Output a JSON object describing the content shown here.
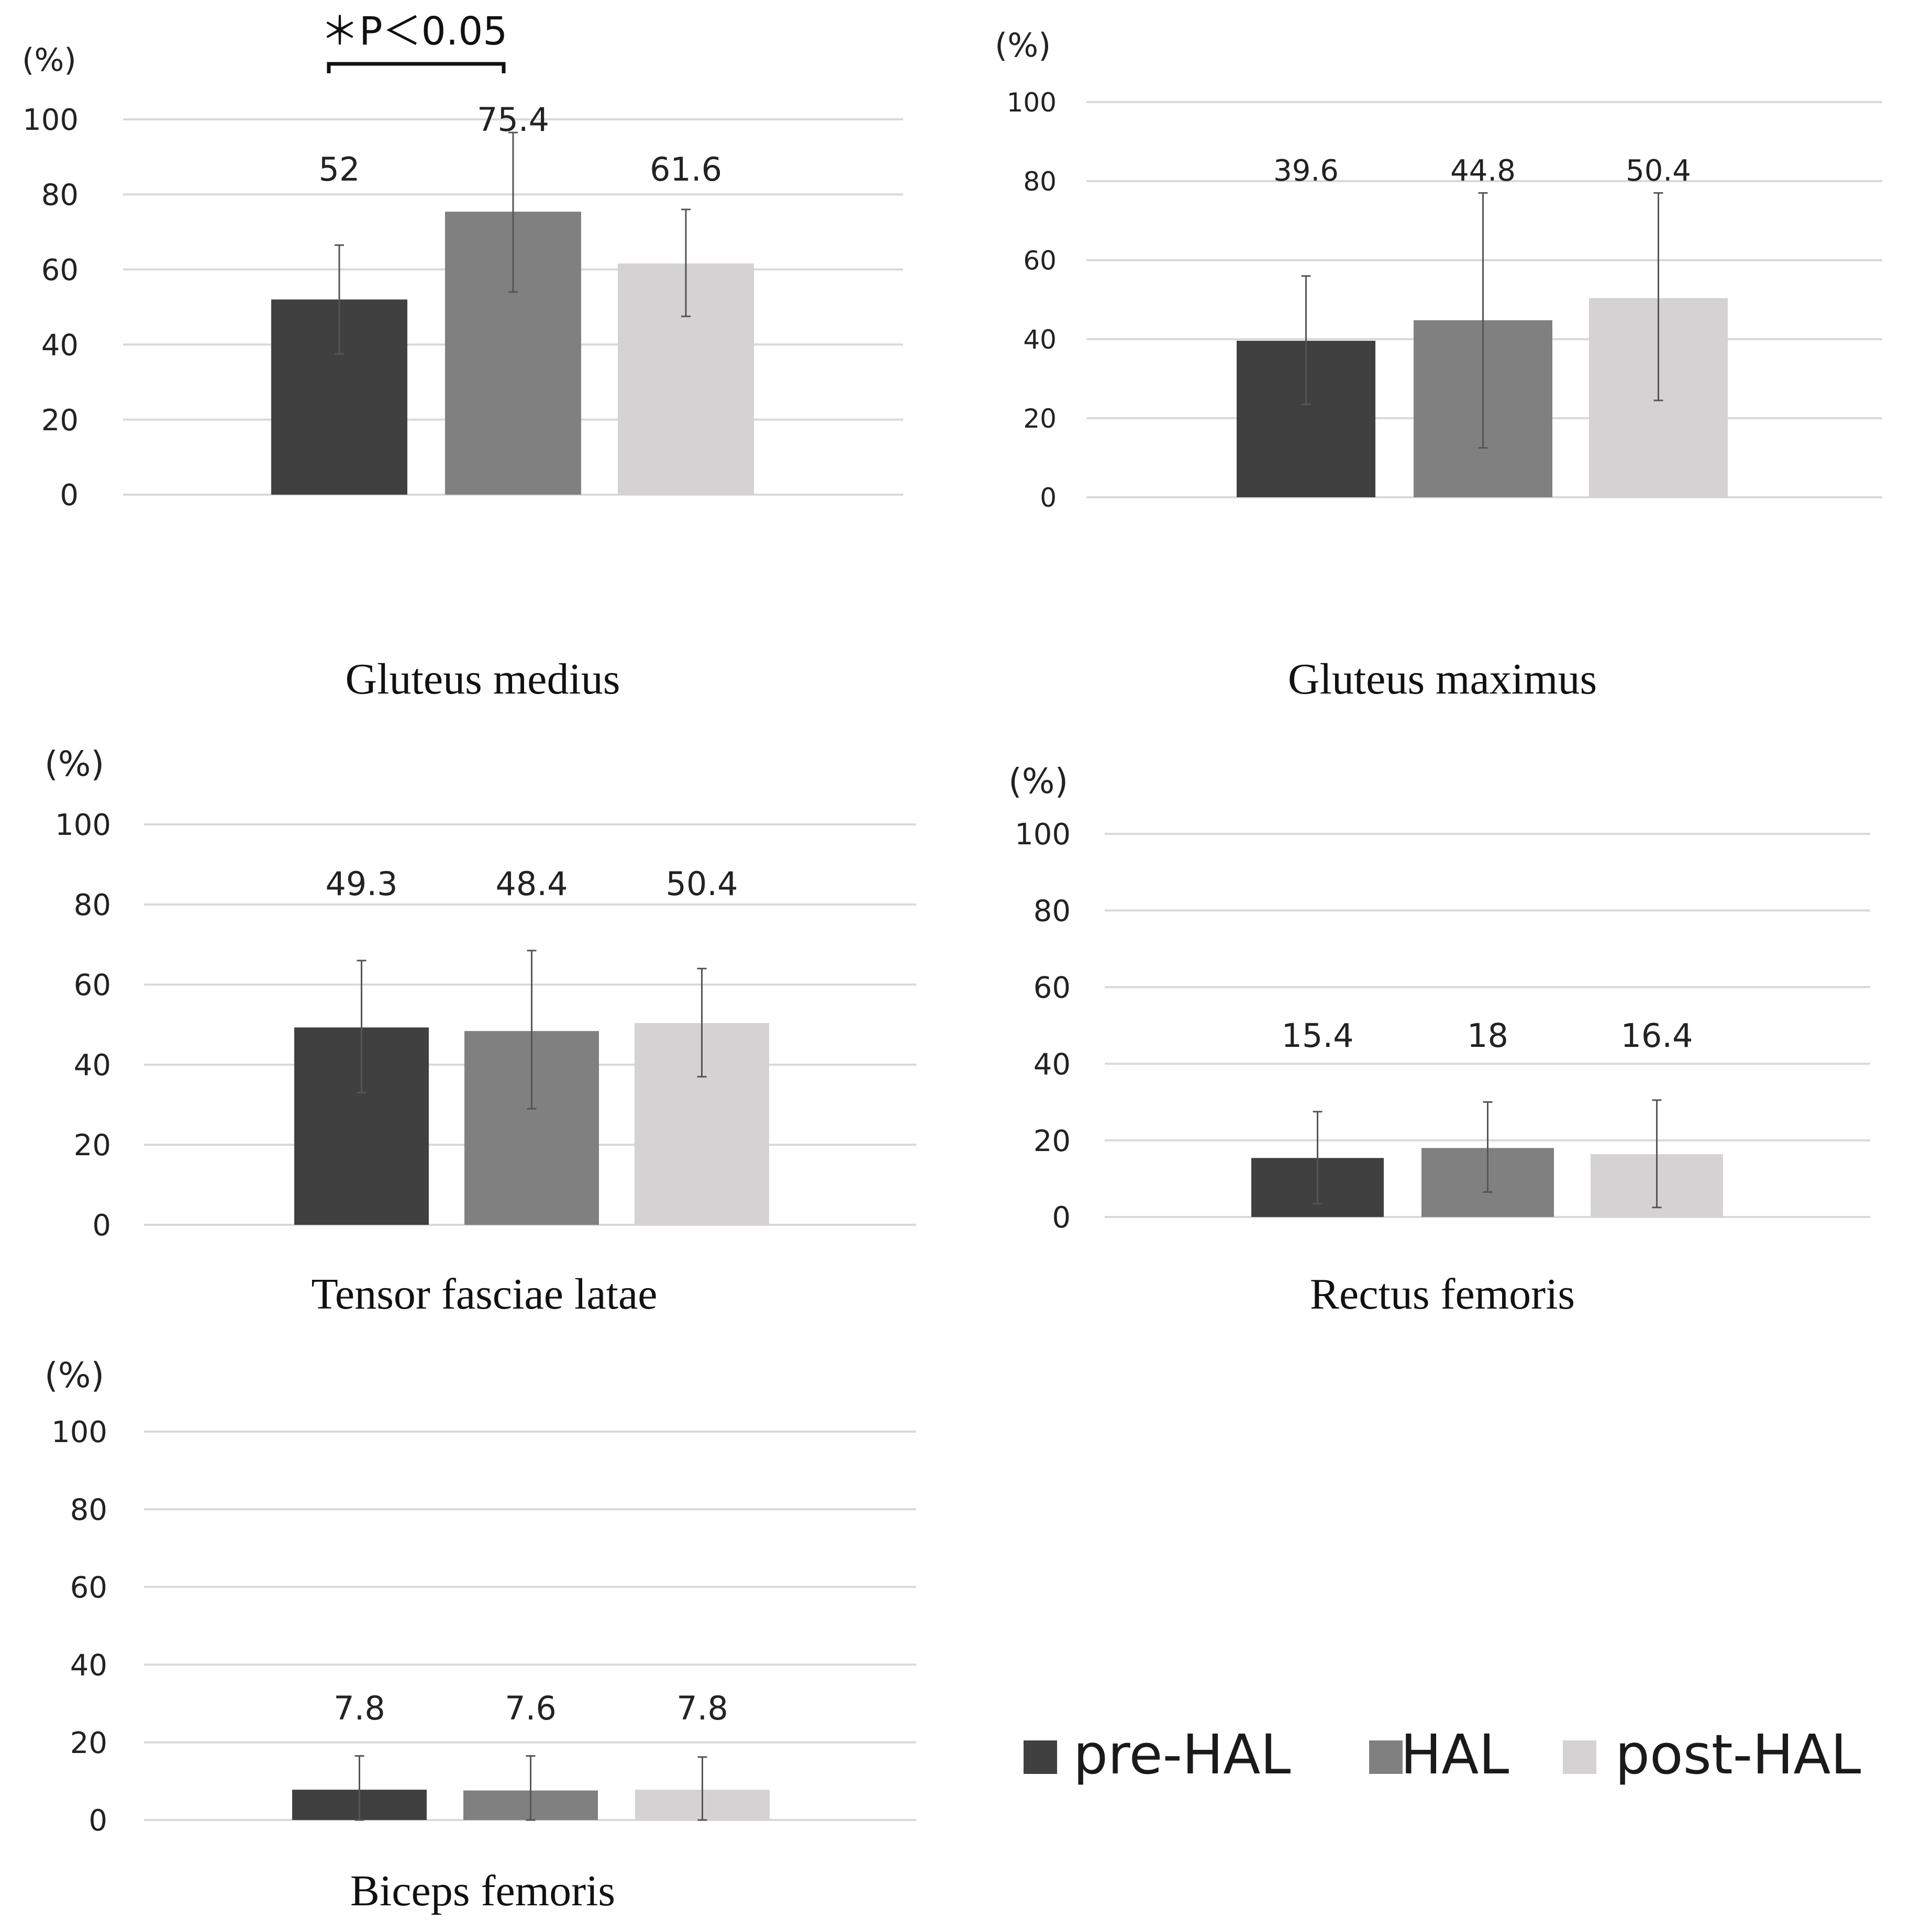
{
  "legend": {
    "position": "bottom-right",
    "items": [
      {
        "label": "pre-HAL",
        "color": "#404040"
      },
      {
        "label": "HAL",
        "color": "#808080"
      },
      {
        "label": "post-HAL",
        "color": "#d4d2d3"
      }
    ]
  },
  "chart_data": [
    {
      "type": "bar",
      "title": "Gluteus medius",
      "ylabel": "(%)",
      "ylim": [
        0,
        100
      ],
      "yticks": [
        0,
        20,
        40,
        60,
        80,
        100
      ],
      "categories": [
        "pre-HAL",
        "HAL",
        "post-HAL"
      ],
      "values": [
        52,
        75.4,
        61.6
      ],
      "value_labels": [
        "52",
        "75.4",
        "61.6"
      ],
      "error_low": [
        37.5,
        54,
        47.5
      ],
      "error_high": [
        66.5,
        96.5,
        76
      ],
      "grid": true,
      "significance": {
        "text": "＊P＜0.05",
        "from": 0,
        "to": 1
      }
    },
    {
      "type": "bar",
      "title": "Gluteus maximus",
      "ylabel": "(%)",
      "ylim": [
        0,
        100
      ],
      "yticks": [
        0,
        20,
        40,
        60,
        80,
        100
      ],
      "categories": [
        "pre-HAL",
        "HAL",
        "post-HAL"
      ],
      "values": [
        39.6,
        44.8,
        50.4
      ],
      "value_labels": [
        "39.6",
        "44.8",
        "50.4"
      ],
      "error_low": [
        23.5,
        12.5,
        24.5
      ],
      "error_high": [
        56,
        77,
        77
      ],
      "grid": true
    },
    {
      "type": "bar",
      "title": "Tensor fasciae latae",
      "ylabel": "(%)",
      "ylim": [
        0,
        100
      ],
      "yticks": [
        0,
        20,
        40,
        60,
        80,
        100
      ],
      "categories": [
        "pre-HAL",
        "HAL",
        "post-HAL"
      ],
      "values": [
        49.3,
        48.4,
        50.4
      ],
      "value_labels": [
        "49.3",
        "48.4",
        "50.4"
      ],
      "error_low": [
        33,
        29,
        37
      ],
      "error_high": [
        66,
        68.5,
        64
      ],
      "grid": true
    },
    {
      "type": "bar",
      "title": "Rectus femoris",
      "ylabel": "(%)",
      "ylim": [
        0,
        100
      ],
      "yticks": [
        0,
        20,
        40,
        60,
        80,
        100
      ],
      "categories": [
        "pre-HAL",
        "HAL",
        "post-HAL"
      ],
      "values": [
        15.4,
        18,
        16.4
      ],
      "value_labels": [
        "15.4",
        "18",
        "16.4"
      ],
      "error_low": [
        3.5,
        6.5,
        2.5
      ],
      "error_high": [
        27.5,
        30,
        30.5
      ],
      "grid": true
    },
    {
      "type": "bar",
      "title": "Biceps femoris",
      "ylabel": "(%)",
      "ylim": [
        0,
        100
      ],
      "yticks": [
        0,
        20,
        40,
        60,
        80,
        100
      ],
      "categories": [
        "pre-HAL",
        "HAL",
        "post-HAL"
      ],
      "values": [
        7.8,
        7.6,
        7.8
      ],
      "value_labels": [
        "7.8",
        "7.6",
        "7.8"
      ],
      "error_low": [
        0,
        0,
        0
      ],
      "error_high": [
        16.5,
        16.5,
        16.2
      ],
      "grid": true
    }
  ]
}
